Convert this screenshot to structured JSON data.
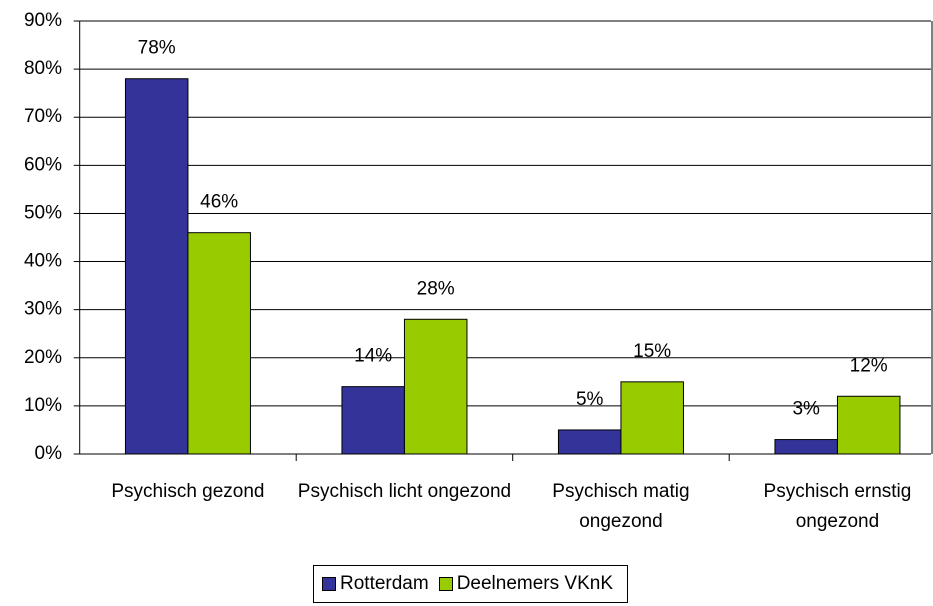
{
  "chart_data": {
    "type": "bar",
    "categories": [
      "Psychisch gezond",
      "Psychisch licht ongezond",
      "Psychisch matig ongezond",
      "Psychisch ernstig ongezond"
    ],
    "series": [
      {
        "name": "Rotterdam",
        "color": "#333399",
        "values": [
          78,
          14,
          5,
          3
        ],
        "value_labels": [
          "78%",
          "14%",
          "5%",
          "3%"
        ]
      },
      {
        "name": "Deelnemers VKnK",
        "color": "#99cc00",
        "values": [
          46,
          28,
          15,
          12
        ],
        "value_labels": [
          "46%",
          "28%",
          "15%",
          "12%"
        ]
      }
    ],
    "ylim": [
      0,
      90
    ],
    "yticks": [
      {
        "value": 0,
        "label": "0%"
      },
      {
        "value": 10,
        "label": "10%"
      },
      {
        "value": 20,
        "label": "20%"
      },
      {
        "value": 30,
        "label": "30%"
      },
      {
        "value": 40,
        "label": "40%"
      },
      {
        "value": 50,
        "label": "50%"
      },
      {
        "value": 60,
        "label": "60%"
      },
      {
        "value": 70,
        "label": "70%"
      },
      {
        "value": 80,
        "label": "80%"
      },
      {
        "value": 90,
        "label": "90%"
      }
    ],
    "grid": true,
    "legend": "bottom"
  }
}
